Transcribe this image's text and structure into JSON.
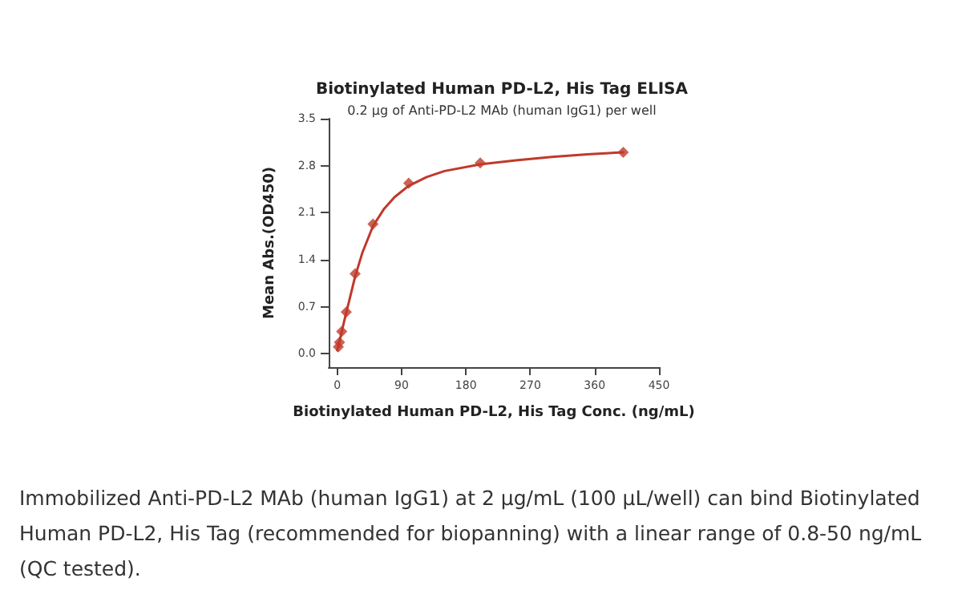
{
  "chart_data": {
    "type": "scatter",
    "title": "Biotinylated Human PD-L2, His Tag ELISA",
    "subtitle": "0.2 µg of Anti-PD-L2 MAb (human IgG1) per well",
    "xlabel": "Biotinylated Human PD-L2, His Tag Conc. (ng/mL)",
    "ylabel": "Mean Abs.(OD450)",
    "annotations": [
      "Immobilized Anti-PD-L2 MAb (human IgG1) at 2 µg/mL (100 µL/well) can bind Biotinylated Human PD-L2, His Tag (recommended for biopanning) with a linear range of 0.8-50 ng/mL (QC tested)."
    ],
    "series": [
      {
        "color": "#c0392b",
        "marker": "diamond",
        "x": [
          1.56,
          3.125,
          6.25,
          12.5,
          25,
          50,
          100,
          200,
          400
        ],
        "values": [
          0.1,
          0.17,
          0.33,
          0.62,
          1.19,
          1.93,
          2.54,
          2.84,
          3.0
        ]
      },
      {
        "type": "line",
        "color": "#c0392b",
        "marker": "none",
        "line_style": "solid",
        "x": [
          0,
          5,
          10,
          17,
          25,
          35,
          50,
          65,
          80,
          100,
          125,
          150,
          200,
          250,
          300,
          350,
          400
        ],
        "values": [
          0.05,
          0.27,
          0.5,
          0.8,
          1.15,
          1.5,
          1.9,
          2.15,
          2.33,
          2.5,
          2.63,
          2.72,
          2.82,
          2.88,
          2.93,
          2.97,
          3.0
        ]
      }
    ],
    "xlim": [
      -12,
      450
    ],
    "xticks": [
      0,
      90,
      180,
      270,
      360,
      450
    ],
    "ylim": [
      -0.2,
      3.5
    ],
    "yticks": [
      {
        "value": 0,
        "label": "0.0"
      },
      0.7,
      1.4,
      2.1,
      2.8,
      3.5
    ],
    "grid": false
  }
}
